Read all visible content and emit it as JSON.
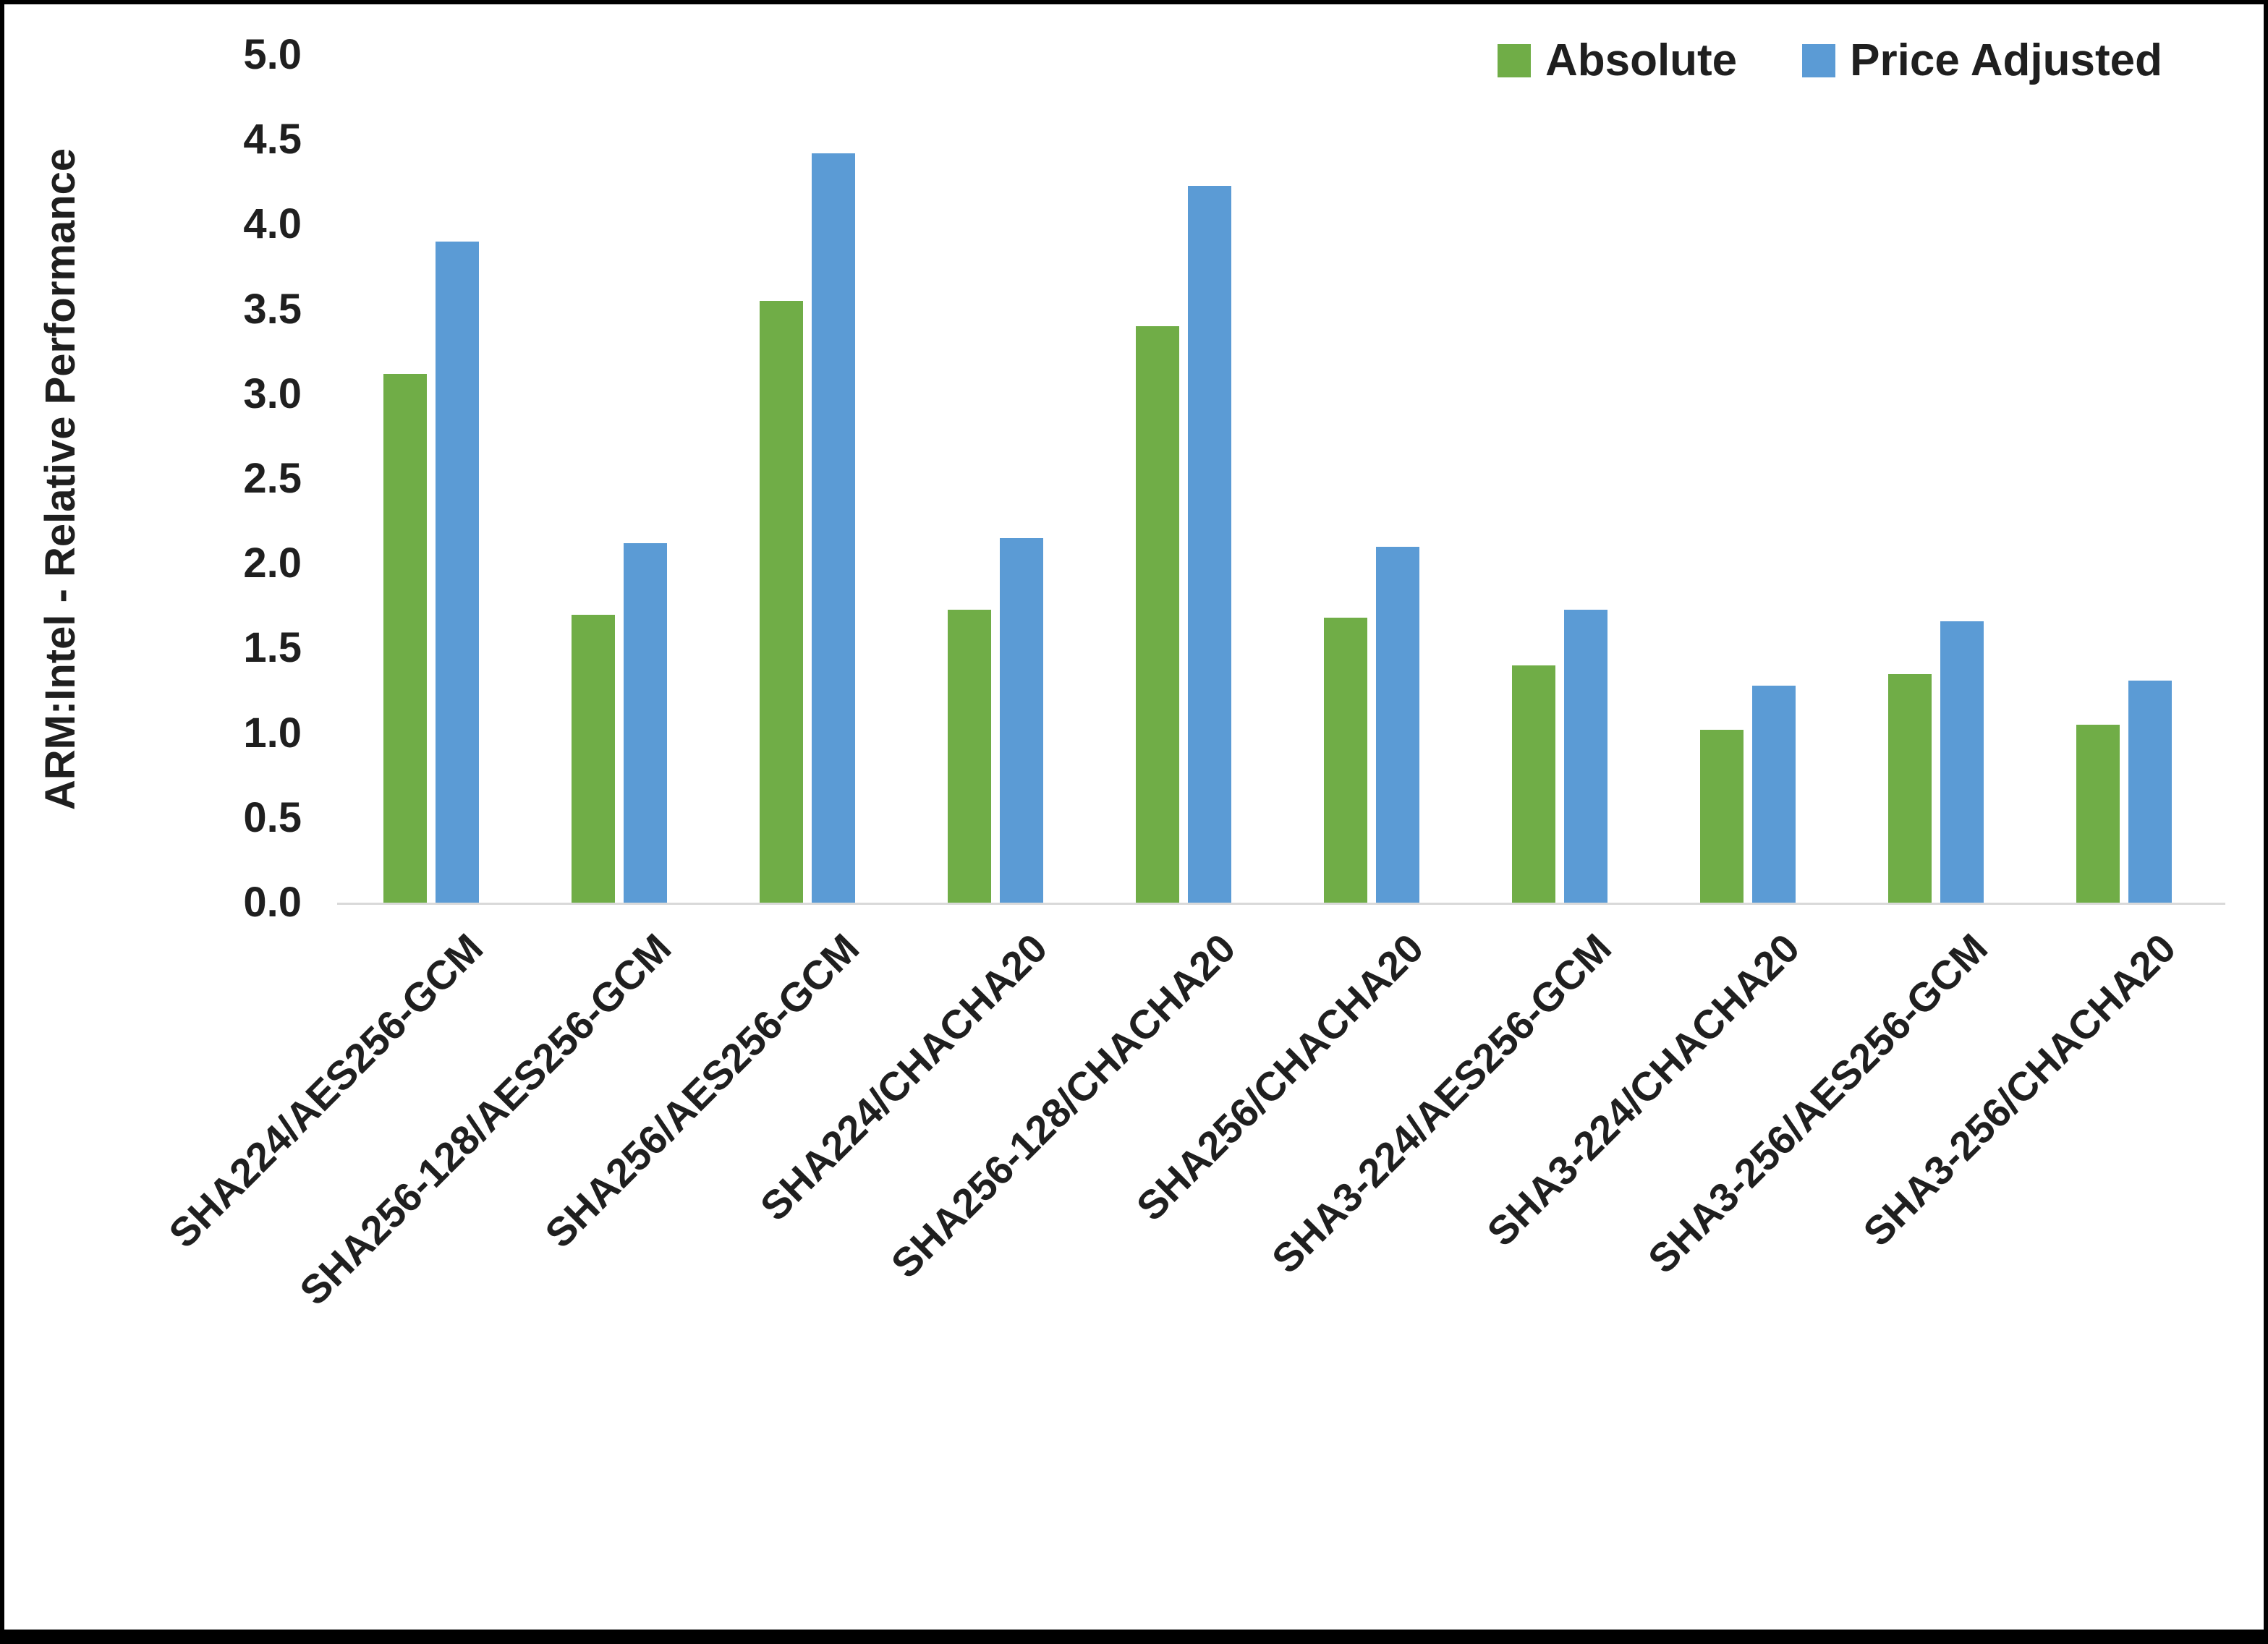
{
  "figure": {
    "background": "#FFFFFF",
    "border_color": "#000000",
    "axis_line_color": "#D9D9D9"
  },
  "chart_data": {
    "type": "bar",
    "title": "",
    "xlabel": "",
    "ylabel": "ARM:Intel - Relative Performance",
    "ylim": [
      0.0,
      5.0
    ],
    "ytick_step": 0.5,
    "ytick_labels": [
      "0.0",
      "0.5",
      "1.0",
      "1.5",
      "2.0",
      "2.5",
      "3.0",
      "3.5",
      "4.0",
      "4.5",
      "5.0"
    ],
    "grid": false,
    "legend_position": "top-right",
    "categories": [
      "SHA224/AES256-GCM",
      "SHA256-128/AES256-GCM",
      "SHA256/AES256-GCM",
      "SHA224/CHACHA20",
      "SHA256-128/CHACHA20",
      "SHA256/CHACHA20",
      "SHA3-224/AES256-GCM",
      "SHA3-224/CHACHA20",
      "SHA3-256/AES256-GCM",
      "SHA3-256/CHACHA20"
    ],
    "series": [
      {
        "name": "Absolute",
        "color": "#70AD47",
        "values": [
          3.12,
          1.7,
          3.55,
          1.73,
          3.4,
          1.68,
          1.4,
          1.02,
          1.35,
          1.05
        ]
      },
      {
        "name": "Price Adjusted",
        "color": "#5B9BD5",
        "values": [
          3.9,
          2.12,
          4.42,
          2.15,
          4.23,
          2.1,
          1.73,
          1.28,
          1.66,
          1.31
        ]
      }
    ]
  }
}
